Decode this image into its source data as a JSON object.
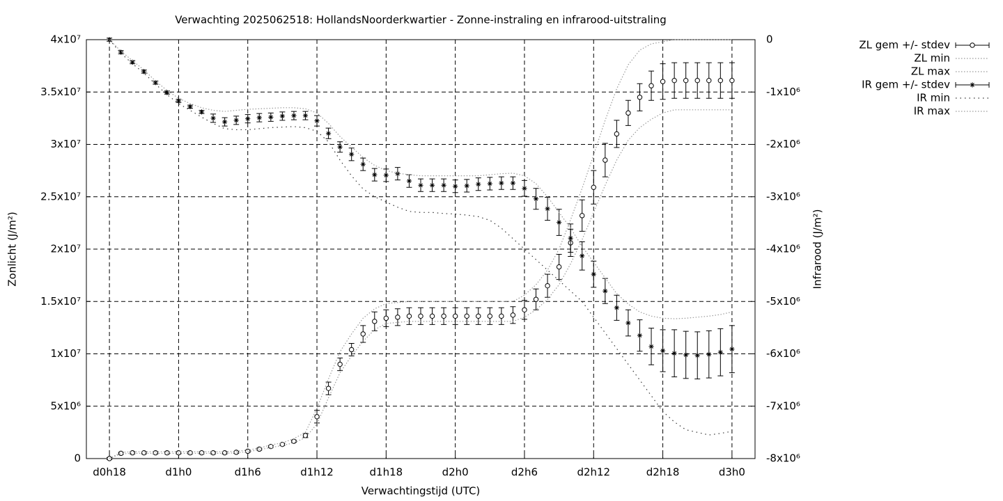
{
  "chart_data": {
    "type": "errorbars",
    "title": "Verwachting 2025062518: HollandsNoorderkwartier - Zonne-instraling en infrarood-uitstraling",
    "xlabel": "Verwachtingstijd (UTC)",
    "ylabel": "Zonlicht (J/m²)",
    "y2label": "Infrarood (J/m²)",
    "grid": true,
    "legend": "outside-top-right",
    "x": [
      18,
      19,
      20,
      21,
      22,
      23,
      24,
      25,
      26,
      27,
      28,
      29,
      30,
      31,
      32,
      33,
      34,
      35,
      36,
      37,
      38,
      39,
      40,
      41,
      42,
      43,
      44,
      45,
      46,
      47,
      48,
      49,
      50,
      51,
      52,
      53,
      54,
      55,
      56,
      57,
      58,
      59,
      60,
      61,
      62,
      63,
      64,
      65,
      66,
      67,
      68,
      69,
      70,
      71,
      72
    ],
    "xlim": [
      16,
      74
    ],
    "xticks": [
      {
        "value": 18,
        "label": "d0h18"
      },
      {
        "value": 24,
        "label": "d1h0"
      },
      {
        "value": 30,
        "label": "d1h6"
      },
      {
        "value": 36,
        "label": "d1h12"
      },
      {
        "value": 42,
        "label": "d1h18"
      },
      {
        "value": 48,
        "label": "d2h0"
      },
      {
        "value": 54,
        "label": "d2h6"
      },
      {
        "value": 60,
        "label": "d2h12"
      },
      {
        "value": 66,
        "label": "d2h18"
      },
      {
        "value": 72,
        "label": "d3h0"
      }
    ],
    "ylim": [
      0,
      40000000.0
    ],
    "yticks": [
      0,
      {
        "value": 5000000.0,
        "label": "5x10⁶"
      },
      {
        "value": 10000000.0,
        "label": "1x10⁷"
      },
      {
        "value": 15000000.0,
        "label": "1.5x10⁷"
      },
      {
        "value": 20000000.0,
        "label": "2x10⁷"
      },
      {
        "value": 25000000.0,
        "label": "2.5x10⁷"
      },
      {
        "value": 30000000.0,
        "label": "3x10⁷"
      },
      {
        "value": 35000000.0,
        "label": "3.5x10⁷"
      },
      {
        "value": 40000000.0,
        "label": "4x10⁷"
      }
    ],
    "y2lim": [
      -8000000.0,
      0
    ],
    "y2ticks": [
      {
        "value": -8000000.0,
        "label": "-8x10⁶"
      },
      {
        "value": -7000000.0,
        "label": "-7x10⁶"
      },
      {
        "value": -6000000.0,
        "label": "-6x10⁶"
      },
      {
        "value": -5000000.0,
        "label": "-5x10⁶"
      },
      {
        "value": -4000000.0,
        "label": "-4x10⁶"
      },
      {
        "value": -3000000.0,
        "label": "-3x10⁶"
      },
      {
        "value": -2000000.0,
        "label": "-2x10⁶"
      },
      {
        "value": -1000000.0,
        "label": "-1x10⁶"
      },
      0
    ],
    "series": [
      {
        "name": "ZL gem +/- stdev",
        "color": "#000000",
        "style": "errorbars",
        "marker": "circle",
        "axis": "y",
        "values": [
          0,
          500000.0,
          550000.0,
          550000.0,
          550000.0,
          550000.0,
          550000.0,
          550000.0,
          550000.0,
          550000.0,
          550000.0,
          600000.0,
          700000.0,
          900000.0,
          1150000.0,
          1350000.0,
          1650000.0,
          2200000.0,
          4000000.0,
          6700000.0,
          9000000.0,
          10400000.0,
          11900000.0,
          13100000.0,
          13400000.0,
          13500000.0,
          13600000.0,
          13600000.0,
          13600000.0,
          13600000.0,
          13600000.0,
          13600000.0,
          13600000.0,
          13600000.0,
          13600000.0,
          13700000.0,
          14200000.0,
          15200000.0,
          16500000.0,
          18300000.0,
          20600000.0,
          23200000.0,
          25900000.0,
          28500000.0,
          31000000.0,
          33000000.0,
          34500000.0,
          35600000.0,
          36000000.0,
          36100000.0,
          36100000.0,
          36100000.0,
          36100000.0,
          36100000.0,
          36100000.0
        ],
        "errors": [
          100000.0,
          100000.0,
          100000.0,
          100000.0,
          100000.0,
          100000.0,
          100000.0,
          100000.0,
          100000.0,
          100000.0,
          100000.0,
          100000.0,
          100000.0,
          100000.0,
          100000.0,
          100000.0,
          100000.0,
          200000.0,
          600000.0,
          600000.0,
          600000.0,
          600000.0,
          800000.0,
          900000.0,
          800000.0,
          800000.0,
          800000.0,
          800000.0,
          800000.0,
          800000.0,
          800000.0,
          800000.0,
          800000.0,
          800000.0,
          800000.0,
          800000.0,
          900000.0,
          1000000.0,
          1100000.0,
          1200000.0,
          1300000.0,
          1500000.0,
          1600000.0,
          1600000.0,
          1300000.0,
          1200000.0,
          1300000.0,
          1400000.0,
          1700000.0,
          1700000.0,
          1700000.0,
          1700000.0,
          1700000.0,
          1700000.0,
          1700000.0
        ]
      },
      {
        "name": "ZL min",
        "color": "#999999",
        "style": "dotted",
        "axis": "y",
        "values": [
          0,
          450000.0,
          500000.0,
          500000.0,
          500000.0,
          500000.0,
          500000.0,
          500000.0,
          500000.0,
          500000.0,
          500000.0,
          550000.0,
          650000.0,
          850000.0,
          1050000.0,
          1250000.0,
          1500000.0,
          2000000.0,
          3300000.0,
          5800000.0,
          8200000.0,
          9800000.0,
          11200000.0,
          12300000.0,
          12900000.0,
          13000000.0,
          13100000.0,
          13100000.0,
          13100000.0,
          13100000.0,
          13100000.0,
          13100000.0,
          13100000.0,
          13100000.0,
          13100000.0,
          13100000.0,
          13500000.0,
          14200000.0,
          15200000.0,
          16600000.0,
          18600000.0,
          20900000.0,
          23500000.0,
          26100000.0,
          28500000.0,
          30400000.0,
          31600000.0,
          32400000.0,
          33000000.0,
          33300000.0,
          33300000.0,
          33300000.0,
          33300000.0,
          33300000.0,
          33300000.0
        ]
      },
      {
        "name": "ZL max",
        "color": "#999999",
        "style": "dotted",
        "axis": "y",
        "values": [
          0,
          600000.0,
          650000.0,
          650000.0,
          650000.0,
          650000.0,
          650000.0,
          650000.0,
          650000.0,
          650000.0,
          650000.0,
          700000.0,
          800000.0,
          1000000.0,
          1300000.0,
          1500000.0,
          1900000.0,
          2500000.0,
          4800000.0,
          7600000.0,
          10200000.0,
          11900000.0,
          13400000.0,
          14300000.0,
          14800000.0,
          14900000.0,
          15000000.0,
          15000000.0,
          15000000.0,
          15000000.0,
          15000000.0,
          15000000.0,
          15000000.0,
          15000000.0,
          15000000.0,
          15000000.0,
          15600000.0,
          16600000.0,
          18000000.0,
          20000000.0,
          22800000.0,
          25800000.0,
          29000000.0,
          32300000.0,
          35300000.0,
          37600000.0,
          39000000.0,
          39600000.0,
          39800000.0,
          40000000.0,
          40000000.0,
          40000000.0,
          40000000.0,
          40000000.0,
          40000000.0
        ]
      },
      {
        "name": "IR gem +/- stdev",
        "color": "#000000",
        "style": "errorbars",
        "marker": "star",
        "axis": "y2",
        "values": [
          0,
          -240000.0,
          -430000.0,
          -610000.0,
          -820000.0,
          -1010000.0,
          -1170000.0,
          -1280000.0,
          -1380000.0,
          -1500000.0,
          -1570000.0,
          -1540000.0,
          -1510000.0,
          -1490000.0,
          -1480000.0,
          -1460000.0,
          -1450000.0,
          -1450000.0,
          -1550000.0,
          -1790000.0,
          -2050000.0,
          -2190000.0,
          -2380000.0,
          -2580000.0,
          -2590000.0,
          -2560000.0,
          -2700000.0,
          -2780000.0,
          -2780000.0,
          -2780000.0,
          -2800000.0,
          -2790000.0,
          -2760000.0,
          -2750000.0,
          -2740000.0,
          -2740000.0,
          -2840000.0,
          -3040000.0,
          -3230000.0,
          -3490000.0,
          -3790000.0,
          -4130000.0,
          -4480000.0,
          -4800000.0,
          -5120000.0,
          -5410000.0,
          -5650000.0,
          -5860000.0,
          -5940000.0,
          -5990000.0,
          -6020000.0,
          -6030000.0,
          -6010000.0,
          -5970000.0,
          -5910000.0
        ],
        "errors": [
          30000.0,
          30000.0,
          30000.0,
          30000.0,
          30000.0,
          30000.0,
          30000.0,
          30000.0,
          30000.0,
          80000.0,
          80000.0,
          80000.0,
          80000.0,
          80000.0,
          80000.0,
          80000.0,
          80000.0,
          80000.0,
          100000.0,
          100000.0,
          100000.0,
          120000.0,
          120000.0,
          120000.0,
          120000.0,
          120000.0,
          120000.0,
          120000.0,
          120000.0,
          120000.0,
          120000.0,
          120000.0,
          120000.0,
          120000.0,
          120000.0,
          120000.0,
          150000.0,
          200000.0,
          220000.0,
          250000.0,
          270000.0,
          270000.0,
          250000.0,
          240000.0,
          240000.0,
          250000.0,
          300000.0,
          350000.0,
          400000.0,
          450000.0,
          450000.0,
          450000.0,
          450000.0,
          450000.0,
          450000.0
        ]
      },
      {
        "name": "IR min",
        "color": "#333333",
        "style": "dotted-wide",
        "axis": "y2",
        "values": [
          0,
          -260000.0,
          -460000.0,
          -640000.0,
          -850000.0,
          -1050000.0,
          -1220000.0,
          -1350000.0,
          -1480000.0,
          -1600000.0,
          -1700000.0,
          -1720000.0,
          -1720000.0,
          -1700000.0,
          -1680000.0,
          -1670000.0,
          -1660000.0,
          -1680000.0,
          -1750000.0,
          -1950000.0,
          -2300000.0,
          -2600000.0,
          -2850000.0,
          -3000000.0,
          -3100000.0,
          -3200000.0,
          -3280000.0,
          -3300000.0,
          -3300000.0,
          -3320000.0,
          -3330000.0,
          -3350000.0,
          -3380000.0,
          -3450000.0,
          -3600000.0,
          -3800000.0,
          -4000000.0,
          -4200000.0,
          -4400000.0,
          -4600000.0,
          -4800000.0,
          -5000000.0,
          -5300000.0,
          -5600000.0,
          -5900000.0,
          -6200000.0,
          -6500000.0,
          -6800000.0,
          -7100000.0,
          -7300000.0,
          -7450000.0,
          -7500000.0,
          -7550000.0,
          -7520000.0,
          -7480000.0
        ]
      },
      {
        "name": "IR max",
        "color": "#999999",
        "style": "dotted",
        "axis": "y2",
        "values": [
          0,
          -220000.0,
          -400000.0,
          -580000.0,
          -790000.0,
          -970000.0,
          -1120000.0,
          -1220000.0,
          -1300000.0,
          -1350000.0,
          -1370000.0,
          -1350000.0,
          -1330000.0,
          -1320000.0,
          -1310000.0,
          -1300000.0,
          -1300000.0,
          -1320000.0,
          -1400000.0,
          -1600000.0,
          -1850000.0,
          -2050000.0,
          -2250000.0,
          -2400000.0,
          -2500000.0,
          -2550000.0,
          -2580000.0,
          -2600000.0,
          -2600000.0,
          -2600000.0,
          -2600000.0,
          -2600000.0,
          -2600000.0,
          -2580000.0,
          -2560000.0,
          -2550000.0,
          -2600000.0,
          -2750000.0,
          -3000000.0,
          -3300000.0,
          -3600000.0,
          -3950000.0,
          -4250000.0,
          -4550000.0,
          -4850000.0,
          -5050000.0,
          -5200000.0,
          -5280000.0,
          -5320000.0,
          -5330000.0,
          -5320000.0,
          -5300000.0,
          -5280000.0,
          -5250000.0,
          -5200000.0
        ]
      }
    ]
  }
}
